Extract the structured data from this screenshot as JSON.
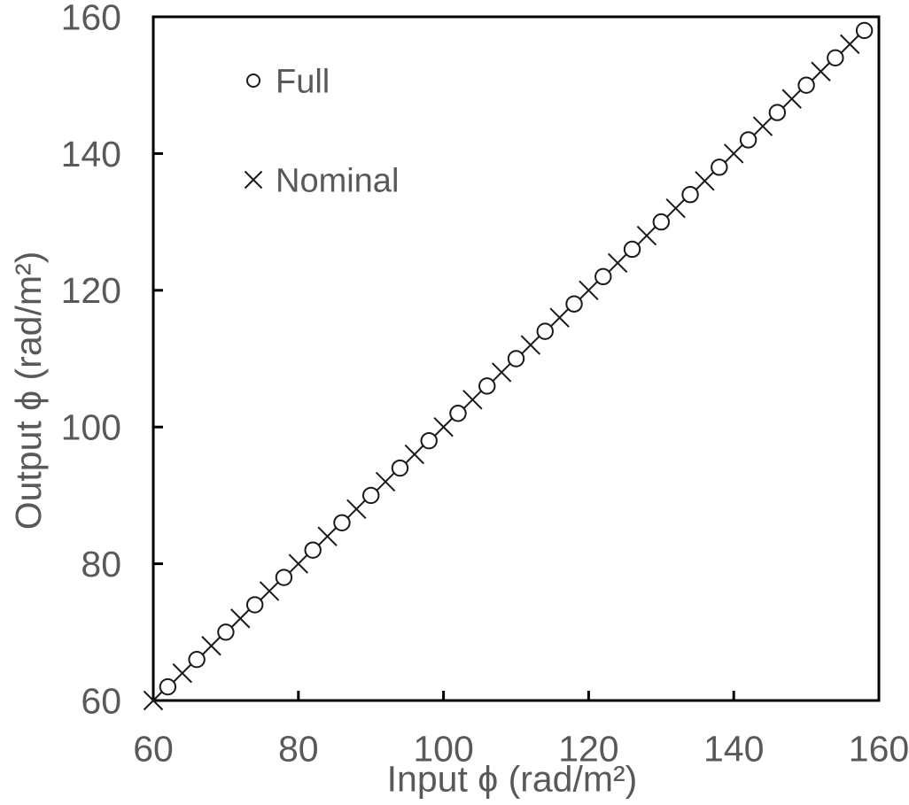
{
  "chart_data": {
    "type": "scatter",
    "title": "",
    "xlabel": "Input ϕ (rad/m²)",
    "ylabel": "Output ϕ (rad/m²)",
    "xlim": [
      60,
      160
    ],
    "ylim": [
      60,
      160
    ],
    "x_ticks": [
      60,
      80,
      100,
      120,
      140,
      160
    ],
    "y_ticks": [
      60,
      80,
      100,
      120,
      140,
      160
    ],
    "grid": false,
    "legend_position": "inside-top-left",
    "series": [
      {
        "name": "Full",
        "marker": "circle",
        "color": "#1a1a1a",
        "x": [
          62,
          66,
          70,
          74,
          78,
          82,
          86,
          90,
          94,
          98,
          102,
          106,
          110,
          114,
          118,
          122,
          126,
          130,
          134,
          138,
          142,
          146,
          150,
          154,
          158
        ],
        "y": [
          62,
          66,
          70,
          74,
          78,
          82,
          86,
          90,
          94,
          98,
          102,
          106,
          110,
          114,
          118,
          122,
          126,
          130,
          134,
          138,
          142,
          146,
          150,
          154,
          158
        ]
      },
      {
        "name": "Nominal",
        "marker": "x",
        "color": "#1a1a1a",
        "x": [
          60,
          64,
          68,
          72,
          76,
          80,
          84,
          88,
          92,
          96,
          100,
          104,
          108,
          112,
          116,
          120,
          124,
          128,
          132,
          136,
          140,
          144,
          148,
          152,
          156
        ],
        "y": [
          60,
          64,
          68,
          72,
          76,
          80,
          84,
          88,
          92,
          96,
          100,
          104,
          108,
          112,
          116,
          120,
          124,
          128,
          132,
          136,
          140,
          144,
          148,
          152,
          156
        ]
      }
    ]
  },
  "colors": {
    "text": "#595959",
    "axis": "#000000",
    "background": "#ffffff"
  }
}
